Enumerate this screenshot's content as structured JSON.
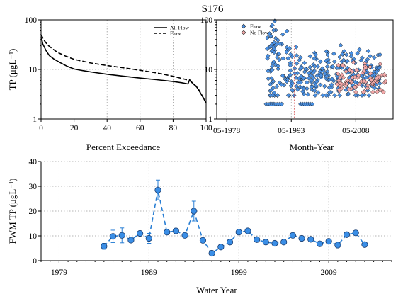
{
  "title": "S176",
  "colors": {
    "flow": "#4a90e2",
    "no_flow": "#f2a8a8",
    "dash_line": "#2a7fd4",
    "marker": "#3a8ee6"
  },
  "chart_data": [
    {
      "id": "exceedance",
      "type": "line",
      "xlabel": "Percent Exceedance",
      "ylabel": "TP (μgL⁻¹)",
      "xlim": [
        0,
        100
      ],
      "ylim": [
        1,
        100
      ],
      "yscale": "log",
      "grid": true,
      "legend_position": "top-right",
      "x_ticks": [
        0,
        20,
        40,
        60,
        80,
        100
      ],
      "y_ticks": [
        1,
        10,
        100
      ],
      "y_tick_labels": [
        "1",
        "10",
        "100"
      ],
      "series": [
        {
          "name": "All Flow",
          "style": "solid",
          "x": [
            0,
            0.5,
            1,
            2,
            3,
            5,
            8,
            12,
            16,
            20,
            25,
            30,
            40,
            50,
            60,
            70,
            80,
            85,
            89,
            90,
            92,
            94,
            96,
            98,
            100
          ],
          "y": [
            45,
            40,
            33,
            28,
            24,
            19,
            16,
            13.5,
            11.5,
            10.2,
            9.5,
            8.9,
            8.0,
            7.3,
            6.7,
            6.2,
            5.7,
            5.4,
            5.1,
            6.2,
            5.2,
            4.6,
            3.6,
            2.8,
            2.1
          ]
        },
        {
          "name": "Flow",
          "style": "dashed",
          "x": [
            0,
            1,
            2,
            4,
            7,
            10,
            15,
            20,
            30,
            40,
            50,
            60,
            70,
            80,
            85,
            90,
            92,
            95,
            97,
            100
          ],
          "y": [
            50,
            44,
            38,
            31,
            26,
            22,
            18.5,
            16,
            13.5,
            12,
            10.8,
            9.6,
            8.5,
            7.3,
            6.6,
            6.0,
            5.2,
            4.2,
            3.2,
            2.1
          ]
        }
      ]
    },
    {
      "id": "month-year",
      "type": "scatter",
      "xlabel": "Month-Year",
      "ylabel": "",
      "xlim": [
        1976,
        2017
      ],
      "ylim": [
        1,
        100
      ],
      "yscale": "log",
      "grid": true,
      "legend_position": "top-left",
      "x_ticks": [
        1978.33,
        1993.33,
        2008.33
      ],
      "x_tick_labels": [
        "05-1978",
        "05-1993",
        "05-2008"
      ],
      "y_ticks": [
        1,
        10,
        100
      ],
      "y_tick_labels": [
        "1",
        "10",
        "100"
      ],
      "series": [
        {
          "name": "Flow",
          "marker": "diamond",
          "x_range": [
            1987.5,
            2014.3
          ],
          "detection_limit": 2,
          "median": 9
        },
        {
          "name": "No Flow",
          "marker": "diamond",
          "x_range": [
            2004,
            2015.3
          ],
          "median": 6
        }
      ]
    },
    {
      "id": "fwm",
      "type": "line",
      "xlabel": "Water Year",
      "ylabel": "FWM TP (μgL⁻¹)",
      "xlim": [
        1977,
        2016
      ],
      "ylim": [
        0,
        40
      ],
      "grid": true,
      "x_ticks": [
        1979,
        1989,
        1999,
        2009
      ],
      "y_ticks": [
        0,
        10,
        20,
        30,
        40
      ],
      "series": [
        {
          "name": "FWM TP",
          "x": [
            1984,
            1985,
            1986,
            1987,
            1988,
            1989,
            1990,
            1991,
            1992,
            1993,
            1994,
            1995,
            1996,
            1997,
            1998,
            1999,
            2000,
            2001,
            2002,
            2003,
            2004,
            2005,
            2006,
            2007,
            2008,
            2009,
            2010,
            2011,
            2012,
            2013
          ],
          "y": [
            5.8,
            9.8,
            10.2,
            8.3,
            11.0,
            9.0,
            28.5,
            11.5,
            12.0,
            10.2,
            20.0,
            8.2,
            3.0,
            5.5,
            7.5,
            11.5,
            12.0,
            8.5,
            7.5,
            7.0,
            7.5,
            10.2,
            9.0,
            8.6,
            6.8,
            7.8,
            6.3,
            10.5,
            11.2,
            6.5
          ],
          "err": [
            1.2,
            2.5,
            3.0,
            0,
            0,
            2.0,
            4.0,
            0,
            0,
            0,
            4.0,
            0,
            0,
            0,
            0,
            0,
            0,
            0,
            0,
            0,
            0,
            0,
            0,
            0,
            0,
            0,
            0,
            0,
            0,
            0
          ]
        }
      ]
    }
  ]
}
